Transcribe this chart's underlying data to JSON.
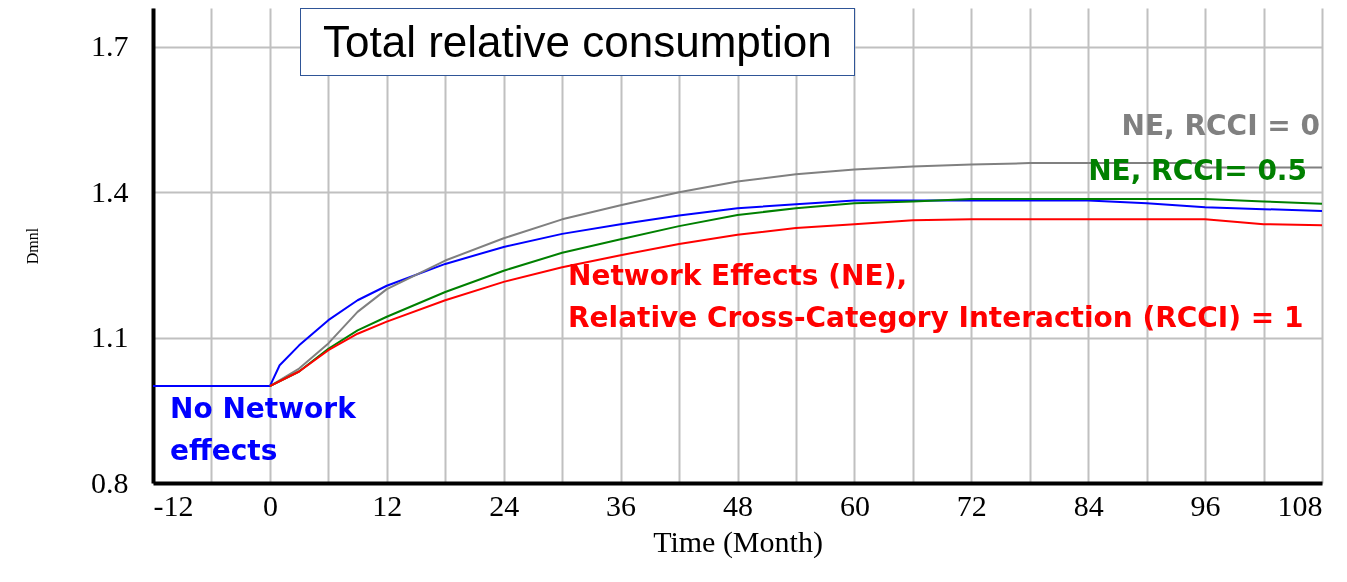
{
  "chart_data": {
    "type": "line",
    "title": "Total relative consumption",
    "xlabel": "Time (Month)",
    "ylabel": "Dmnl",
    "xlim": [
      -12,
      108
    ],
    "ylim": [
      0.8,
      1.78
    ],
    "xticks": [
      -12,
      {
        "value": -6,
        "label": null
      },
      0,
      {
        "value": 6,
        "label": null
      },
      12,
      {
        "value": 18,
        "label": null
      },
      24,
      {
        "value": 30,
        "label": null
      },
      36,
      {
        "value": 42,
        "label": null
      },
      48,
      {
        "value": 54,
        "label": null
      },
      60,
      {
        "value": 66,
        "label": null
      },
      72,
      {
        "value": 78,
        "label": null
      },
      84,
      {
        "value": 90,
        "label": null
      },
      96,
      {
        "value": 102,
        "label": null
      },
      108
    ],
    "yticks": [
      0.8,
      1.1,
      1.4,
      1.7
    ],
    "grid": true,
    "line_style": "solid",
    "marker": "none",
    "series": [
      {
        "name": "No Network\neffects",
        "color": "#0000ff",
        "x": [
          -12,
          0,
          1,
          3,
          6,
          9,
          12,
          18,
          24,
          30,
          36,
          42,
          48,
          54,
          60,
          66,
          72,
          78,
          84,
          90,
          96,
          102,
          108
        ],
        "values": [
          1.0,
          1.0,
          1.043,
          1.084,
          1.136,
          1.177,
          1.207,
          1.252,
          1.287,
          1.314,
          1.334,
          1.352,
          1.367,
          1.375,
          1.383,
          1.383,
          1.383,
          1.383,
          1.383,
          1.377,
          1.369,
          1.365,
          1.361
        ]
      },
      {
        "name": "NE, RCCI = 0",
        "color": "#808080",
        "x": [
          0,
          3,
          6,
          9,
          12,
          18,
          24,
          30,
          36,
          42,
          48,
          54,
          60,
          66,
          72,
          78,
          84,
          90,
          95,
          96,
          102,
          108
        ],
        "values": [
          1.0,
          1.036,
          1.088,
          1.153,
          1.2,
          1.259,
          1.305,
          1.344,
          1.373,
          1.4,
          1.422,
          1.437,
          1.447,
          1.453,
          1.457,
          1.46,
          1.46,
          1.46,
          1.46,
          1.451,
          1.451,
          1.451
        ]
      },
      {
        "name": "NE, RCCI= 0.5",
        "color": "#008000",
        "x": [
          0,
          3,
          6,
          9,
          12,
          18,
          24,
          30,
          36,
          42,
          48,
          54,
          60,
          66,
          72,
          78,
          84,
          90,
          96,
          102,
          108
        ],
        "values": [
          1.0,
          1.03,
          1.077,
          1.115,
          1.143,
          1.194,
          1.238,
          1.275,
          1.303,
          1.33,
          1.353,
          1.367,
          1.377,
          1.381,
          1.386,
          1.386,
          1.386,
          1.386,
          1.386,
          1.381,
          1.376
        ]
      },
      {
        "name": "Network Effects (NE),\nRelative Cross-Category Interaction (RCCI) = 1",
        "color": "#ff0000",
        "x": [
          0,
          3,
          6,
          9,
          12,
          18,
          24,
          30,
          36,
          42,
          48,
          54,
          60,
          66,
          72,
          78,
          84,
          90,
          96,
          102,
          108
        ],
        "values": [
          1.0,
          1.03,
          1.074,
          1.108,
          1.133,
          1.177,
          1.215,
          1.245,
          1.27,
          1.293,
          1.312,
          1.326,
          1.334,
          1.342,
          1.344,
          1.344,
          1.344,
          1.344,
          1.344,
          1.334,
          1.332
        ]
      }
    ]
  }
}
